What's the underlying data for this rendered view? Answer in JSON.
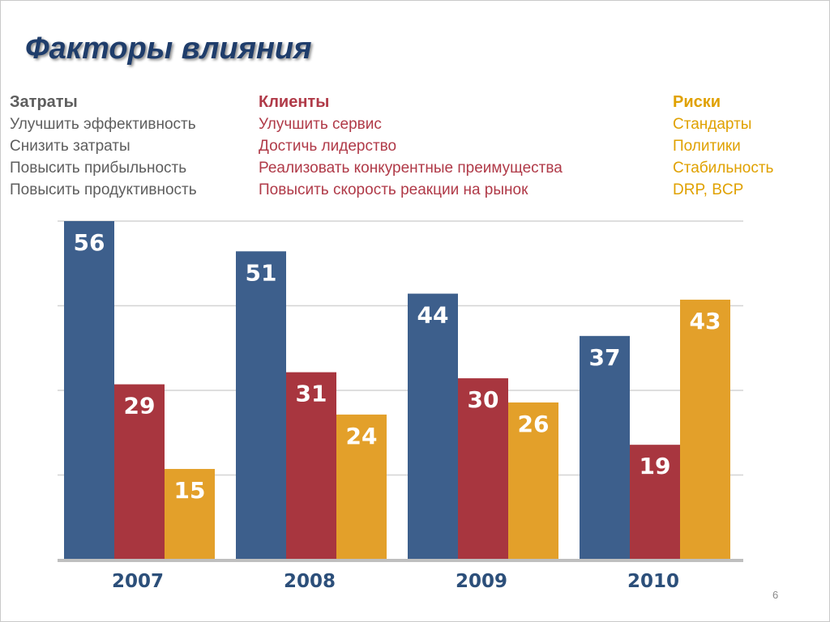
{
  "slide": {
    "title": "Факторы влияния",
    "page_number": "6"
  },
  "columns": {
    "costs": {
      "heading": "Затраты",
      "items": [
        "Улучшить эффективность",
        "Снизить затраты",
        "Повысить прибыльность",
        "Повысить продуктивность"
      ],
      "color": "#5e5e5e"
    },
    "clients": {
      "heading": "Клиенты",
      "items": [
        "Улучшить сервис",
        "Достичь лидерство",
        "Реализовать конкурентные преимущества",
        "Повысить скорость реакции на рынок"
      ],
      "color": "#b03a48"
    },
    "risks": {
      "heading": "Риски",
      "items": [
        "Стандарты",
        "Политики",
        "Стабильность",
        "DRP, BCP"
      ],
      "color": "#e0a100"
    }
  },
  "chart_data": {
    "type": "bar",
    "categories": [
      "2007",
      "2008",
      "2009",
      "2010"
    ],
    "series": [
      {
        "values": [
          56,
          51,
          44,
          37
        ],
        "color": "#3d5f8c"
      },
      {
        "values": [
          29,
          31,
          30,
          19
        ],
        "color": "#a8363f"
      },
      {
        "values": [
          15,
          24,
          26,
          43
        ],
        "color": "#e3a02a"
      }
    ],
    "ylim": [
      0,
      56
    ],
    "grid": true,
    "legend": "none"
  }
}
